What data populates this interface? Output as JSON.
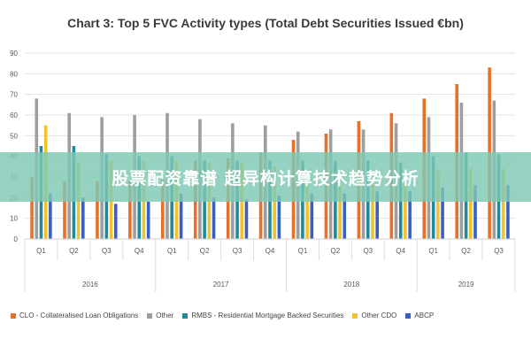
{
  "chart_data": {
    "type": "bar",
    "title": "Chart 3: Top 5 FVC Activity types (Total Debt Securities Issued €bn)",
    "ylim": [
      0,
      90
    ],
    "yticks": [
      0,
      10,
      20,
      30,
      40,
      50,
      60,
      70,
      80,
      90
    ],
    "grid": true,
    "legend_position": "bottom",
    "categories": [
      "Q1",
      "Q2",
      "Q3",
      "Q4",
      "Q1",
      "Q2",
      "Q3",
      "Q4",
      "Q1",
      "Q2",
      "Q3",
      "Q4",
      "Q1",
      "Q2",
      "Q3"
    ],
    "groups": [
      {
        "label": "2016",
        "count": 4
      },
      {
        "label": "2017",
        "count": 4
      },
      {
        "label": "2018",
        "count": 4
      },
      {
        "label": "2019",
        "count": 3
      }
    ],
    "series": [
      {
        "name": "CLO - Collateralised Loan Obligations",
        "color": "#e8702a",
        "values": [
          30,
          28,
          28,
          28,
          29,
          38,
          39,
          42,
          48,
          51,
          57,
          61,
          68,
          75,
          83
        ]
      },
      {
        "name": "Other",
        "color": "#9e9e9e",
        "values": [
          68,
          61,
          59,
          60,
          61,
          58,
          56,
          55,
          52,
          53,
          53,
          56,
          59,
          66,
          67
        ]
      },
      {
        "name": "RMBS - Residential Mortgage Backed Securities",
        "color": "#1f8a9c",
        "values": [
          45,
          45,
          41,
          40,
          40,
          38,
          38,
          38,
          38,
          38,
          38,
          37,
          40,
          42,
          41
        ]
      },
      {
        "name": "Other CDO",
        "color": "#f2c12e",
        "values": [
          55,
          37,
          38,
          38,
          38,
          37,
          37,
          35,
          32,
          33,
          32,
          32,
          33,
          34,
          34
        ]
      },
      {
        "name": "ABCP",
        "color": "#3a5fc1",
        "values": [
          22,
          20,
          17,
          18,
          22,
          20,
          19,
          21,
          22,
          22,
          23,
          23,
          25,
          26,
          26
        ]
      }
    ]
  },
  "banner": {
    "text": "股票配资靠谱 超异构计算技术趋势分析",
    "color": "#7ec8b4"
  }
}
